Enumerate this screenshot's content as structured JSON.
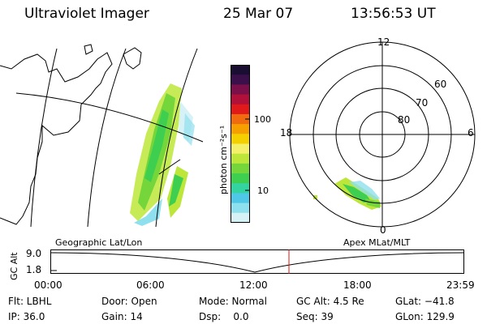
{
  "header": {
    "instrument": "Ultraviolet Imager",
    "date": "25 Mar 07",
    "time": "13:56:53 UT"
  },
  "colorbar": {
    "unit_label": "photon cm⁻²s⁻¹",
    "tick_labels": [
      "100",
      "10"
    ],
    "colors": [
      "#1a0f33",
      "#3a0f4a",
      "#7a0f4a",
      "#b0103a",
      "#e01a1a",
      "#f06a10",
      "#f5a000",
      "#f5d000",
      "#f5f06a",
      "#bde63a",
      "#74d63a",
      "#3ecf50",
      "#34d4a0",
      "#4ec8e6",
      "#8fe0ee",
      "#d6f2f6"
    ]
  },
  "polar_plot": {
    "lat_labels": [
      "60",
      "70",
      "80"
    ],
    "mlt_labels": [
      "12",
      "18",
      "6",
      "0"
    ]
  },
  "geo_label": "Geographic Lat/Lon",
  "apex_label": "Apex MLat/MLT",
  "altitude_plot": {
    "axis_label": "GC Alt",
    "y_ticks": [
      "9.0",
      "1.8"
    ],
    "time_ticks": [
      "00:00",
      "06:00",
      "12:00",
      "18:00",
      "23:59"
    ],
    "marker_color": "#e01010"
  },
  "status": {
    "filter": "Flt: LBHL",
    "door": "Door: Open",
    "mode": "Mode: Normal",
    "gc_alt": "GC Alt: 4.5 Re",
    "glat": "GLat: −41.8",
    "ip": "IP: 36.0",
    "gain": "Gain: 14",
    "dsp": "Dsp:    0.0",
    "seq": "Seq: 39",
    "glon": "GLon: 129.9"
  }
}
